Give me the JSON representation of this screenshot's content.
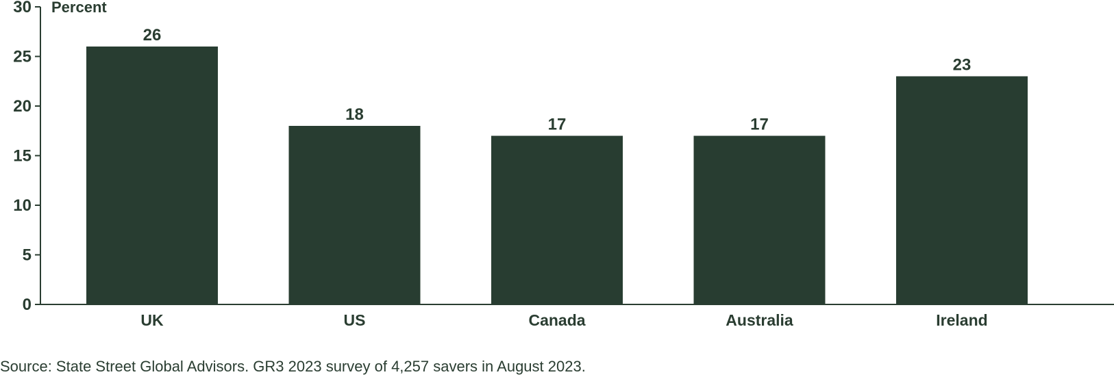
{
  "chart_data": {
    "type": "bar",
    "ylabel": "Percent",
    "xlabel": "",
    "ylim": [
      0,
      30
    ],
    "yticks": [
      0,
      5,
      10,
      15,
      20,
      25,
      30
    ],
    "categories": [
      "UK",
      "US",
      "Canada",
      "Australia",
      "Ireland"
    ],
    "values": [
      26,
      18,
      17,
      17,
      23
    ],
    "data_labels": [
      "26",
      "18",
      "17",
      "17",
      "23"
    ],
    "bar_color": "#283d31",
    "grid": false,
    "legend": "none"
  },
  "source": "Source: State Street Global Advisors. GR3 2023 survey of 4,257 savers in August 2023."
}
